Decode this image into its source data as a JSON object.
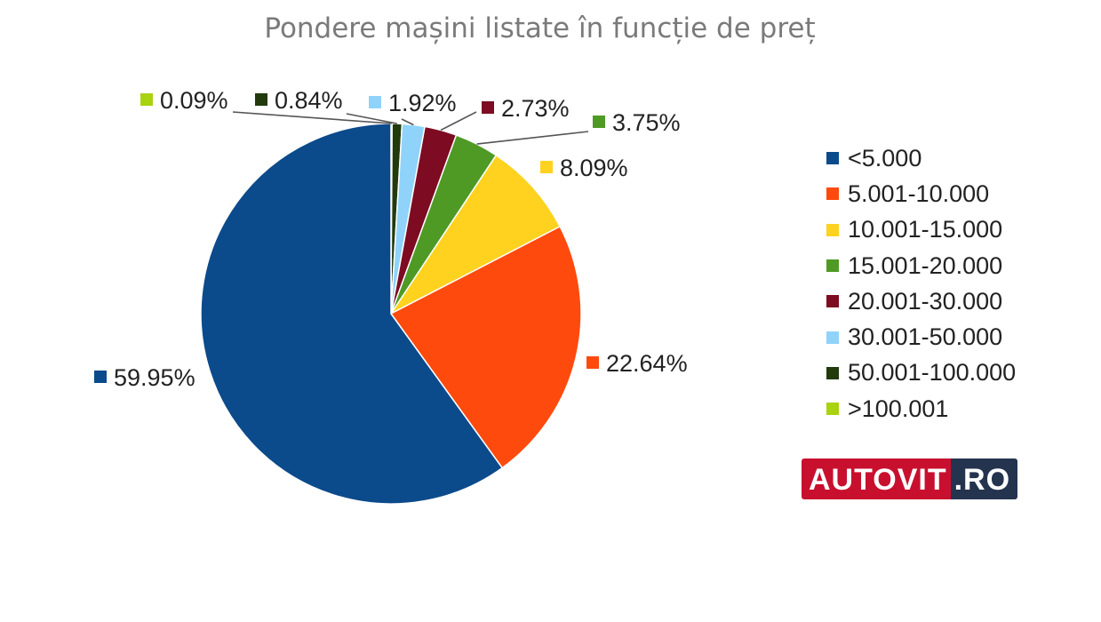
{
  "chart_data": {
    "type": "pie",
    "title": "Pondere mașini listate în funcție de preț",
    "categories": [
      "<5.000",
      "5.001-10.000",
      "10.001-15.000",
      "15.001-20.000",
      "20.001-30.000",
      "30.001-50.000",
      "50.001-100.000",
      ">100.001"
    ],
    "values": [
      59.95,
      22.64,
      8.09,
      3.75,
      2.73,
      1.92,
      0.84,
      0.09
    ],
    "data_labels": [
      "59.95%",
      "22.64%",
      "8.09%",
      "3.75%",
      "2.73%",
      "1.92%",
      "0.84%",
      "0.09%"
    ],
    "colors": [
      "#0b4a8b",
      "#ff4a0d",
      "#ffd21f",
      "#4f9a25",
      "#7d0b22",
      "#8fd3fa",
      "#223a0c",
      "#a9d20f"
    ],
    "legend_position": "right"
  },
  "logo": {
    "main": "AUTOVIT",
    "tld": ".RO"
  }
}
